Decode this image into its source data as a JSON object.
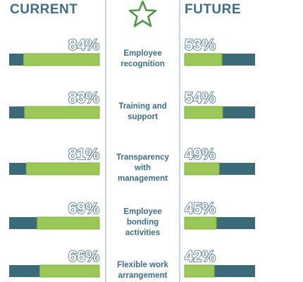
{
  "colors": {
    "label_text": "#3e6e86",
    "track": "#3b6b79",
    "fill": "#9bc858",
    "fill_border": "#7fb13c",
    "divider": "#a7bfd2",
    "star": "#4f9a45"
  },
  "icon": "star-outline-icon",
  "chart_data": {
    "type": "bar",
    "series": [
      {
        "name": "CURRENT",
        "values": [
          84,
          83,
          81,
          69,
          66
        ]
      },
      {
        "name": "FUTURE",
        "values": [
          53,
          54,
          49,
          45,
          42
        ]
      }
    ],
    "categories": [
      [
        "Employee",
        "recognition"
      ],
      [
        "Training and",
        "support"
      ],
      [
        "Transparency",
        "with",
        "management"
      ],
      [
        "Employee",
        "bonding",
        "activities"
      ],
      [
        "Flexible work",
        "arrangement"
      ]
    ],
    "value_labels": {
      "current": [
        "84%",
        "83%",
        "81%",
        "69%",
        "66%"
      ],
      "future": [
        "53%",
        "54%",
        "49%",
        "45%",
        "42%"
      ]
    },
    "ylim": [
      0,
      100
    ]
  }
}
